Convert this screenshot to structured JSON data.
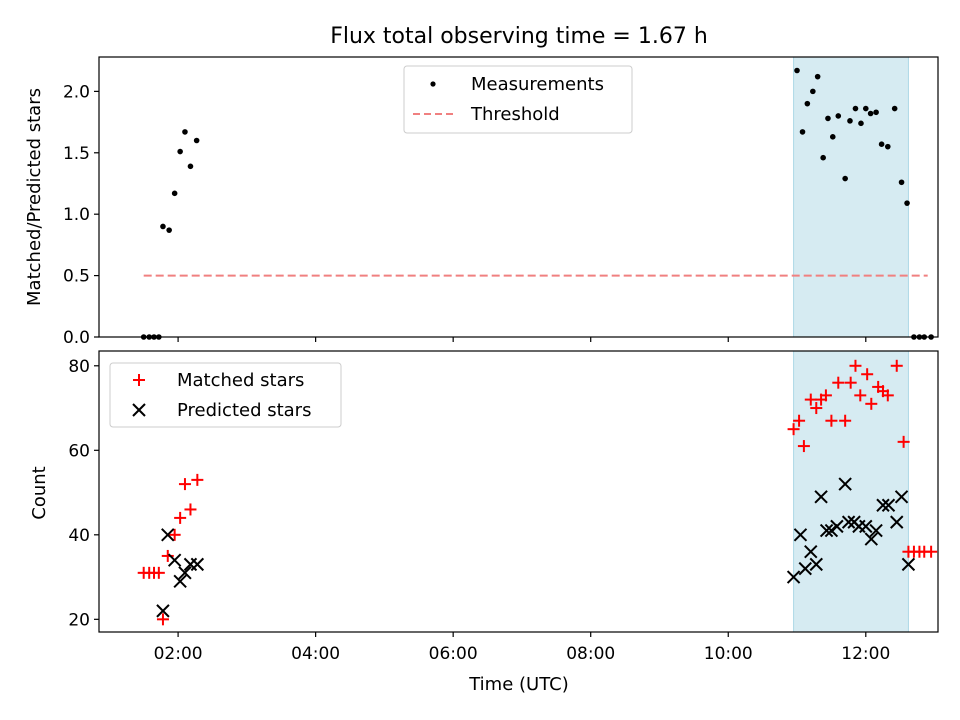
{
  "chart_data": [
    {
      "type": "scatter",
      "title": "Flux total observing time = 1.67 h",
      "xlabel": "",
      "ylabel": "Matched/Predicted stars",
      "xlim": [
        0.85,
        13.05
      ],
      "ylim": [
        0,
        2.28
      ],
      "yticks": [
        0.0,
        0.5,
        1.0,
        1.5,
        2.0
      ],
      "ytick_labels": [
        "0.0",
        "0.5",
        "1.0",
        "1.5",
        "2.0"
      ],
      "xticks": [
        2,
        4,
        6,
        8,
        10,
        12
      ],
      "highlight_span": [
        10.95,
        12.62
      ],
      "legend": [
        "Measurements",
        "Threshold"
      ],
      "threshold": {
        "name": "Threshold",
        "y": 0.5,
        "x_range": [
          1.5,
          12.9
        ],
        "color": "#f08080"
      },
      "series": [
        {
          "name": "Measurements",
          "color": "#000000",
          "points": [
            [
              1.5,
              0
            ],
            [
              1.58,
              0
            ],
            [
              1.65,
              0
            ],
            [
              1.72,
              0
            ],
            [
              1.78,
              0.9
            ],
            [
              1.87,
              0.87
            ],
            [
              1.95,
              1.17
            ],
            [
              2.03,
              1.51
            ],
            [
              2.1,
              1.67
            ],
            [
              2.18,
              1.39
            ],
            [
              2.27,
              1.6
            ],
            [
              11.0,
              2.17
            ],
            [
              11.08,
              1.67
            ],
            [
              11.15,
              1.9
            ],
            [
              11.23,
              2.0
            ],
            [
              11.3,
              2.12
            ],
            [
              11.38,
              1.46
            ],
            [
              11.45,
              1.78
            ],
            [
              11.52,
              1.63
            ],
            [
              11.6,
              1.8
            ],
            [
              11.7,
              1.29
            ],
            [
              11.77,
              1.76
            ],
            [
              11.85,
              1.86
            ],
            [
              11.93,
              1.74
            ],
            [
              12.0,
              1.86
            ],
            [
              12.07,
              1.82
            ],
            [
              12.15,
              1.83
            ],
            [
              12.23,
              1.57
            ],
            [
              12.32,
              1.55
            ],
            [
              12.42,
              1.86
            ],
            [
              12.52,
              1.26
            ],
            [
              12.6,
              1.09
            ],
            [
              12.7,
              0
            ],
            [
              12.78,
              0
            ],
            [
              12.85,
              0
            ],
            [
              12.95,
              0
            ]
          ]
        }
      ]
    },
    {
      "type": "scatter",
      "title": "",
      "xlabel": "Time (UTC)",
      "ylabel": "Count",
      "xlim": [
        0.85,
        13.05
      ],
      "ylim": [
        17,
        83.5
      ],
      "yticks": [
        20,
        40,
        60,
        80
      ],
      "ytick_labels": [
        "20",
        "40",
        "60",
        "80"
      ],
      "xticks": [
        2,
        4,
        6,
        8,
        10,
        12
      ],
      "xtick_labels": [
        "02:00",
        "04:00",
        "06:00",
        "08:00",
        "10:00",
        "12:00"
      ],
      "highlight_span": [
        10.95,
        12.62
      ],
      "legend": [
        "Matched stars",
        "Predicted stars"
      ],
      "series": [
        {
          "name": "Matched stars",
          "marker": "+",
          "color": "#ff0000",
          "points": [
            [
              1.5,
              31
            ],
            [
              1.58,
              31
            ],
            [
              1.65,
              31
            ],
            [
              1.72,
              31
            ],
            [
              1.78,
              20
            ],
            [
              1.85,
              35
            ],
            [
              1.95,
              40
            ],
            [
              2.03,
              44
            ],
            [
              2.1,
              52
            ],
            [
              2.18,
              46
            ],
            [
              2.28,
              53
            ],
            [
              10.95,
              65
            ],
            [
              11.03,
              67
            ],
            [
              11.1,
              61
            ],
            [
              11.2,
              72
            ],
            [
              11.28,
              70
            ],
            [
              11.35,
              72
            ],
            [
              11.42,
              73
            ],
            [
              11.5,
              67
            ],
            [
              11.6,
              76
            ],
            [
              11.7,
              67
            ],
            [
              11.78,
              76
            ],
            [
              11.85,
              80
            ],
            [
              11.92,
              73
            ],
            [
              12.02,
              78
            ],
            [
              12.08,
              71
            ],
            [
              12.18,
              75
            ],
            [
              12.25,
              74
            ],
            [
              12.32,
              73
            ],
            [
              12.45,
              80
            ],
            [
              12.55,
              62
            ],
            [
              12.62,
              36
            ],
            [
              12.7,
              36
            ],
            [
              12.78,
              36
            ],
            [
              12.85,
              36
            ],
            [
              12.95,
              36
            ]
          ]
        },
        {
          "name": "Predicted stars",
          "marker": "x",
          "color": "#000000",
          "points": [
            [
              1.78,
              22
            ],
            [
              1.85,
              40
            ],
            [
              1.95,
              34
            ],
            [
              2.03,
              29
            ],
            [
              2.1,
              31
            ],
            [
              2.18,
              33
            ],
            [
              2.28,
              33
            ],
            [
              10.95,
              30
            ],
            [
              11.05,
              40
            ],
            [
              11.12,
              32
            ],
            [
              11.2,
              36
            ],
            [
              11.28,
              33
            ],
            [
              11.35,
              49
            ],
            [
              11.43,
              41
            ],
            [
              11.5,
              41
            ],
            [
              11.58,
              42
            ],
            [
              11.7,
              52
            ],
            [
              11.75,
              43
            ],
            [
              11.83,
              43
            ],
            [
              11.9,
              42
            ],
            [
              12.0,
              42
            ],
            [
              12.08,
              39
            ],
            [
              12.15,
              41
            ],
            [
              12.25,
              47
            ],
            [
              12.33,
              47
            ],
            [
              12.45,
              43
            ],
            [
              12.52,
              49
            ],
            [
              12.62,
              33
            ]
          ]
        }
      ]
    }
  ]
}
